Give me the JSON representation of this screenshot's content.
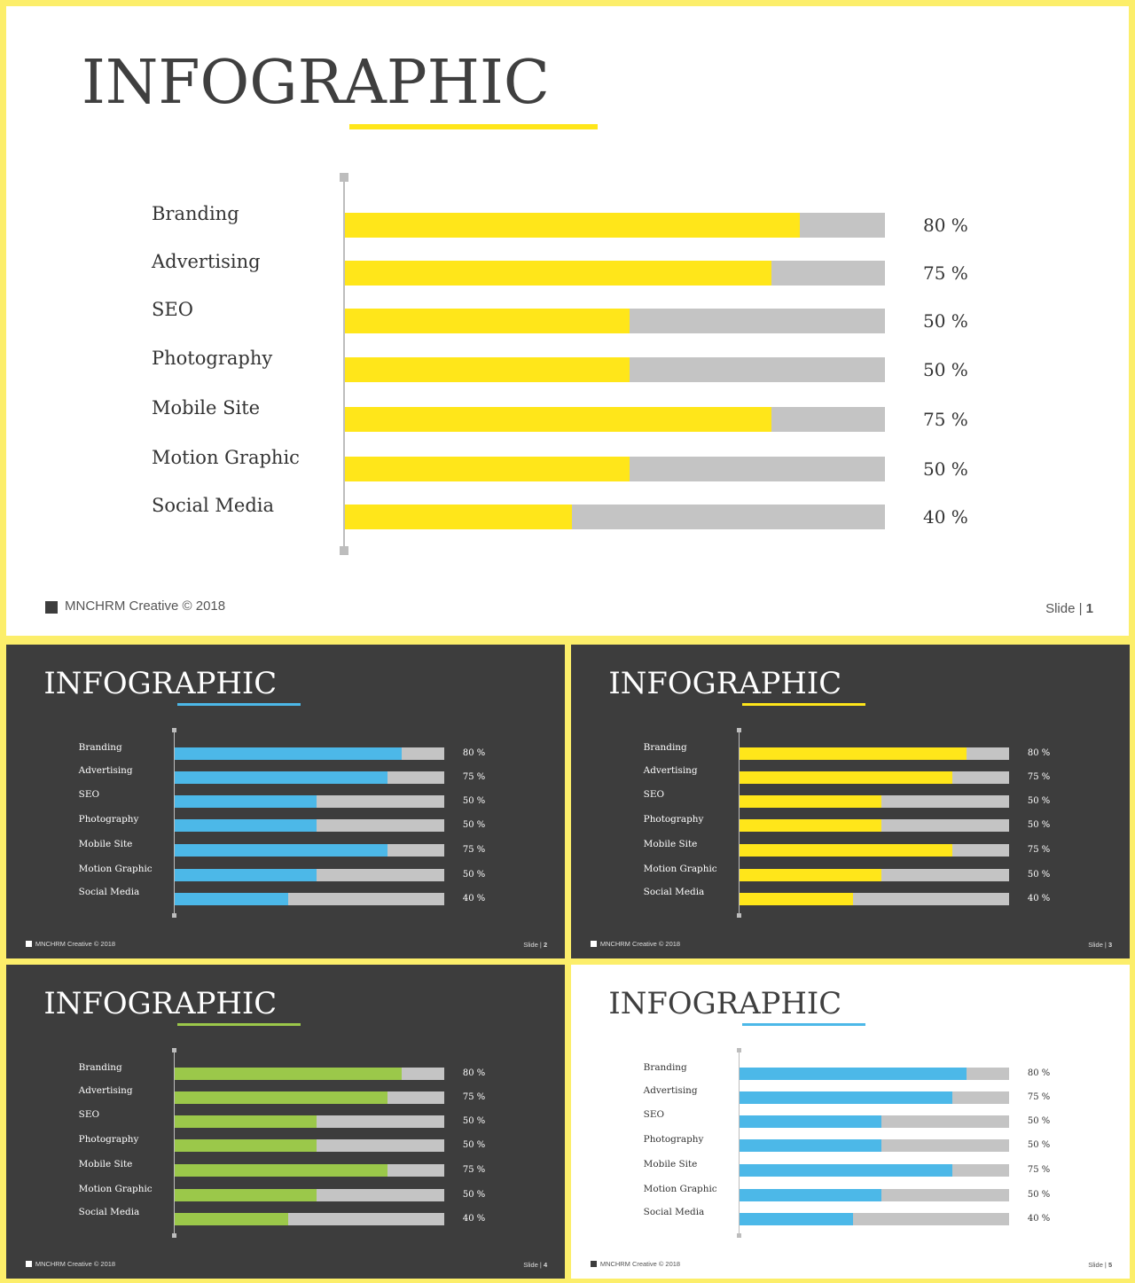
{
  "footer_text": "MNCHRM Creative © 2018",
  "slide_prefix": "Slide | ",
  "colors": {
    "yellow": "#ffe61a",
    "blue": "#4cb8e8",
    "green": "#9bc84a",
    "track": "#c4c4c4",
    "dark_bg": "#3d3d3d",
    "light_bg": "#ffffff",
    "frame": "#fcee6a"
  },
  "chart_data": [
    {
      "type": "bar",
      "orientation": "horizontal",
      "title": "INFOGRAPHIC",
      "theme": "light",
      "accent": "#ffe61a",
      "slide_number": "1",
      "categories": [
        "Branding",
        "Advertising",
        "SEO",
        "Photography",
        "Mobile Site",
        "Motion Graphic",
        "Social Media"
      ],
      "values": [
        80,
        75,
        50,
        50,
        75,
        50,
        40
      ],
      "value_labels": [
        "80 %",
        "75 %",
        "50 %",
        "50 %",
        "75 %",
        "50 %",
        "40 %"
      ],
      "xlim": [
        0,
        95
      ]
    },
    {
      "type": "bar",
      "orientation": "horizontal",
      "title": "INFOGRAPHIC",
      "theme": "dark",
      "accent": "#4cb8e8",
      "slide_number": "2",
      "categories": [
        "Branding",
        "Advertising",
        "SEO",
        "Photography",
        "Mobile Site",
        "Motion Graphic",
        "Social Media"
      ],
      "values": [
        80,
        75,
        50,
        50,
        75,
        50,
        40
      ],
      "value_labels": [
        "80 %",
        "75 %",
        "50 %",
        "50 %",
        "75 %",
        "50 %",
        "40 %"
      ],
      "xlim": [
        0,
        95
      ]
    },
    {
      "type": "bar",
      "orientation": "horizontal",
      "title": "INFOGRAPHIC",
      "theme": "dark",
      "accent": "#ffe61a",
      "slide_number": "3",
      "categories": [
        "Branding",
        "Advertising",
        "SEO",
        "Photography",
        "Mobile Site",
        "Motion Graphic",
        "Social Media"
      ],
      "values": [
        80,
        75,
        50,
        50,
        75,
        50,
        40
      ],
      "value_labels": [
        "80 %",
        "75 %",
        "50 %",
        "50 %",
        "75 %",
        "50 %",
        "40 %"
      ],
      "xlim": [
        0,
        95
      ]
    },
    {
      "type": "bar",
      "orientation": "horizontal",
      "title": "INFOGRAPHIC",
      "theme": "dark",
      "accent": "#9bc84a",
      "slide_number": "4",
      "categories": [
        "Branding",
        "Advertising",
        "SEO",
        "Photography",
        "Mobile Site",
        "Motion Graphic",
        "Social Media"
      ],
      "values": [
        80,
        75,
        50,
        50,
        75,
        50,
        40
      ],
      "value_labels": [
        "80 %",
        "75 %",
        "50 %",
        "50 %",
        "75 %",
        "50 %",
        "40 %"
      ],
      "xlim": [
        0,
        95
      ]
    },
    {
      "type": "bar",
      "orientation": "horizontal",
      "title": "INFOGRAPHIC",
      "theme": "light",
      "accent": "#4cb8e8",
      "slide_number": "5",
      "categories": [
        "Branding",
        "Advertising",
        "SEO",
        "Photography",
        "Mobile Site",
        "Motion Graphic",
        "Social Media"
      ],
      "values": [
        80,
        75,
        50,
        50,
        75,
        50,
        40
      ],
      "value_labels": [
        "80 %",
        "75 %",
        "50 %",
        "50 %",
        "75 %",
        "50 %",
        "40 %"
      ],
      "xlim": [
        0,
        95
      ]
    }
  ]
}
